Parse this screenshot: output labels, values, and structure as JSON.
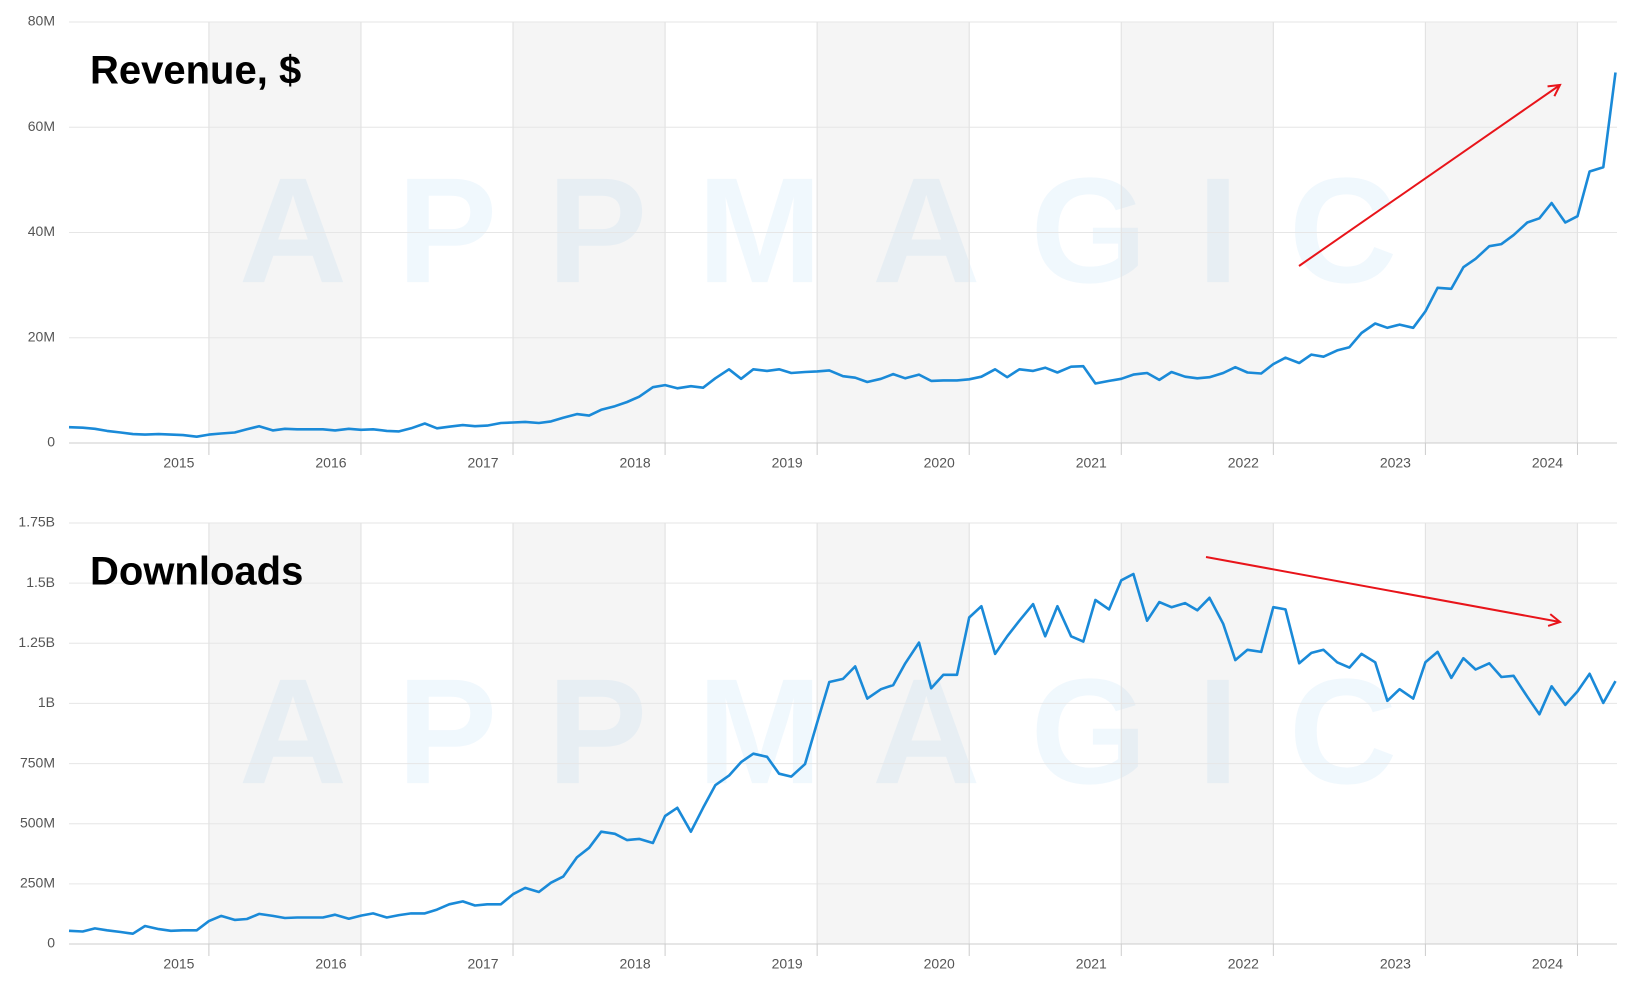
{
  "chart_data": [
    {
      "type": "line",
      "title": "Revenue, $",
      "watermark": "APPMAGIC",
      "x": [
        2014.08,
        2014.17,
        2014.25,
        2014.33,
        2014.42,
        2014.5,
        2014.58,
        2014.67,
        2014.75,
        2014.83,
        2014.92,
        2015,
        2015.08,
        2015.17,
        2015.25,
        2015.33,
        2015.42,
        2015.5,
        2015.58,
        2015.67,
        2015.75,
        2015.83,
        2015.92,
        2016,
        2016.08,
        2016.17,
        2016.25,
        2016.33,
        2016.42,
        2016.5,
        2016.58,
        2016.67,
        2016.75,
        2016.83,
        2016.92,
        2017,
        2017.08,
        2017.17,
        2017.25,
        2017.33,
        2017.42,
        2017.5,
        2017.58,
        2017.67,
        2017.75,
        2017.83,
        2017.92,
        2018,
        2018.08,
        2018.17,
        2018.25,
        2018.33,
        2018.42,
        2018.5,
        2018.58,
        2018.67,
        2018.75,
        2018.83,
        2018.92,
        2019,
        2019.08,
        2019.17,
        2019.25,
        2019.33,
        2019.42,
        2019.5,
        2019.58,
        2019.67,
        2019.75,
        2019.83,
        2019.92,
        2020,
        2020.08,
        2020.17,
        2020.25,
        2020.33,
        2020.42,
        2020.5,
        2020.58,
        2020.67,
        2020.75,
        2020.83,
        2020.92,
        2021,
        2021.08,
        2021.17,
        2021.25,
        2021.33,
        2021.42,
        2021.5,
        2021.58,
        2021.67,
        2021.75,
        2021.83,
        2021.92,
        2022,
        2022.08,
        2022.17,
        2022.25,
        2022.33,
        2022.42,
        2022.5,
        2022.58,
        2022.67,
        2022.75,
        2022.83,
        2022.92,
        2023,
        2023.08,
        2023.17,
        2023.25,
        2023.33,
        2023.42,
        2023.5,
        2023.58,
        2023.67,
        2023.75,
        2023.83,
        2023.92,
        2024,
        2024.08,
        2024.17,
        2024.25
      ],
      "series": [
        {
          "name": "Revenue",
          "color": "#1a8ad8",
          "values": [
            3.0,
            2.9,
            2.7,
            2.3,
            2.0,
            1.7,
            1.6,
            1.7,
            1.6,
            1.5,
            1.2,
            1.6,
            1.8,
            2.0,
            2.6,
            3.2,
            2.4,
            2.7,
            2.6,
            2.6,
            2.6,
            2.4,
            2.7,
            2.5,
            2.6,
            2.3,
            2.2,
            2.8,
            3.7,
            2.8,
            3.1,
            3.4,
            3.2,
            3.3,
            3.8,
            3.9,
            4.0,
            3.8,
            4.1,
            4.8,
            5.5,
            5.2,
            6.3,
            7.0,
            7.8,
            8.8,
            10.6,
            11.0,
            10.4,
            10.8,
            10.5,
            12.3,
            14.0,
            12.2,
            14.0,
            13.7,
            14.0,
            13.3,
            13.5,
            13.6,
            13.8,
            12.7,
            12.4,
            11.6,
            12.2,
            13.1,
            12.3,
            13.0,
            11.8,
            11.9,
            11.9,
            12.1,
            12.6,
            14.0,
            12.5,
            14.0,
            13.7,
            14.3,
            13.4,
            14.5,
            14.6,
            11.3,
            11.8,
            12.2,
            13.0,
            13.3,
            12.0,
            13.5,
            12.6,
            12.3,
            12.5,
            13.3,
            14.4,
            13.4,
            13.2,
            15.0,
            16.2,
            15.2,
            16.8,
            16.4,
            17.6,
            18.2,
            20.9,
            22.7,
            21.9,
            22.5,
            21.9,
            25.0,
            29.5,
            29.3,
            33.4,
            35.0,
            37.4,
            37.8,
            39.5,
            41.9,
            42.7,
            45.6,
            41.9,
            43.1,
            51.6,
            52.4,
            70.4
          ]
        }
      ],
      "xlim": [
        2014.08,
        2024.26
      ],
      "xticks": [
        2015,
        2016,
        2017,
        2018,
        2019,
        2020,
        2021,
        2022,
        2023,
        2024
      ],
      "ylim": [
        0,
        80
      ],
      "yticks": [
        0,
        {
          "value": 20,
          "label": "20M"
        },
        {
          "value": 40,
          "label": "40M"
        },
        {
          "value": 60,
          "label": "60M"
        },
        {
          "value": 80,
          "label": "80M"
        }
      ],
      "grid": true
    },
    {
      "type": "line",
      "title": "Downloads",
      "watermark": "APPMAGIC",
      "x": [
        2014.08,
        2014.17,
        2014.25,
        2014.33,
        2014.42,
        2014.5,
        2014.58,
        2014.67,
        2014.75,
        2014.83,
        2014.92,
        2015,
        2015.08,
        2015.17,
        2015.25,
        2015.33,
        2015.42,
        2015.5,
        2015.58,
        2015.67,
        2015.75,
        2015.83,
        2015.92,
        2016,
        2016.08,
        2016.17,
        2016.25,
        2016.33,
        2016.42,
        2016.5,
        2016.58,
        2016.67,
        2016.75,
        2016.83,
        2016.92,
        2017,
        2017.08,
        2017.17,
        2017.25,
        2017.33,
        2017.42,
        2017.5,
        2017.58,
        2017.67,
        2017.75,
        2017.83,
        2017.92,
        2018,
        2018.08,
        2018.17,
        2018.25,
        2018.33,
        2018.42,
        2018.5,
        2018.58,
        2018.67,
        2018.75,
        2018.83,
        2018.92,
        2019,
        2019.08,
        2019.17,
        2019.25,
        2019.33,
        2019.42,
        2019.5,
        2019.58,
        2019.67,
        2019.75,
        2019.83,
        2019.92,
        2020,
        2020.08,
        2020.17,
        2020.25,
        2020.33,
        2020.42,
        2020.5,
        2020.58,
        2020.67,
        2020.75,
        2020.83,
        2020.92,
        2021,
        2021.08,
        2021.17,
        2021.25,
        2021.33,
        2021.42,
        2021.5,
        2021.58,
        2021.67,
        2021.75,
        2021.83,
        2021.92,
        2022,
        2022.08,
        2022.17,
        2022.25,
        2022.33,
        2022.42,
        2022.5,
        2022.58,
        2022.67,
        2022.75,
        2022.83,
        2022.92,
        2023,
        2023.08,
        2023.17,
        2023.25,
        2023.33,
        2023.42,
        2023.5,
        2023.58,
        2023.67,
        2023.75,
        2023.83,
        2023.92,
        2024,
        2024.08,
        2024.17,
        2024.25
      ],
      "series": [
        {
          "name": "Downloads",
          "color": "#1a8ad8",
          "values": [
            55,
            52,
            65,
            57,
            50,
            43,
            75,
            62,
            55,
            57,
            57,
            95,
            117,
            100,
            104,
            125,
            117,
            108,
            110,
            110,
            110,
            122,
            105,
            118,
            127,
            110,
            120,
            127,
            127,
            143,
            165,
            177,
            160,
            165,
            165,
            207,
            233,
            216,
            255,
            280,
            360,
            400,
            467,
            458,
            432,
            437,
            420,
            532,
            566,
            467,
            566,
            660,
            700,
            756,
            791,
            778,
            708,
            696,
            748,
            920,
            1089,
            1102,
            1154,
            1020,
            1059,
            1076,
            1167,
            1253,
            1063,
            1119,
            1119,
            1357,
            1404,
            1206,
            1279,
            1344,
            1413,
            1279,
            1404,
            1279,
            1257,
            1430,
            1391,
            1512,
            1538,
            1344,
            1421,
            1400,
            1417,
            1387,
            1439,
            1331,
            1180,
            1223,
            1214,
            1400,
            1391,
            1167,
            1210,
            1223,
            1171,
            1149,
            1206,
            1171,
            1011,
            1059,
            1020,
            1171,
            1214,
            1106,
            1188,
            1141,
            1167,
            1110,
            1115,
            1028,
            955,
            1071,
            994,
            1050,
            1123,
            1002,
            1093
          ]
        }
      ],
      "xlim": [
        2014.08,
        2024.26
      ],
      "xticks": [
        2015,
        2016,
        2017,
        2018,
        2019,
        2020,
        2021,
        2022,
        2023,
        2024
      ],
      "ylim": [
        0,
        1750
      ],
      "yticks": [
        0,
        {
          "value": 250,
          "label": "250M"
        },
        {
          "value": 500,
          "label": "500M"
        },
        {
          "value": 750,
          "label": "750M"
        },
        {
          "value": 1000,
          "label": "1B"
        },
        {
          "value": 1250,
          "label": "1.25B"
        },
        {
          "value": 1500,
          "label": "1.5B"
        },
        {
          "value": 1750,
          "label": "1.75B"
        }
      ],
      "grid": true
    }
  ]
}
